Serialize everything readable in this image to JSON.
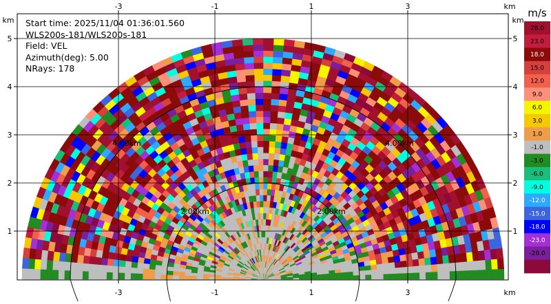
{
  "chart_data": {
    "type": "heatmap",
    "subtype": "radar-ppi-sector",
    "title": "",
    "info_lines": [
      "Start time: 2025/11/04 01:36:01.560",
      "WLS200s-181/WLS200s-181",
      "Field: VEL",
      "Azimuth(deg): 5.00",
      "NRays: 178"
    ],
    "xlabel": "km",
    "ylabel": "km",
    "xlim": [
      -5.1,
      5.1
    ],
    "ylim": [
      0,
      5.3
    ],
    "x_ticks": [
      -3,
      -1,
      1,
      3
    ],
    "x_tick_labels": [
      "-3",
      "-1",
      "1",
      "3"
    ],
    "y_ticks": [
      1,
      2,
      3,
      4,
      5
    ],
    "y_tick_labels": [
      "1",
      "2",
      "3",
      "4",
      "5"
    ],
    "grid": true,
    "range_rings_km": [
      2,
      4
    ],
    "range_ring_labels": [
      "2.00km",
      "4.00km",
      "2.00km",
      "4.00km"
    ],
    "max_range_km": 5.0,
    "sector_deg": [
      0,
      180
    ],
    "colorbar": {
      "unit": "m/s",
      "labels": [
        "28.0",
        "23.0",
        "18.0",
        "15.0",
        "12.0",
        "9.0",
        "6.0",
        "3.0",
        "1.0",
        "-1.0",
        "-3.0",
        "-6.0",
        "-9.0",
        "-12.0",
        "-15.0",
        "-18.0",
        "-23.0",
        "-28.0"
      ],
      "colors": [
        "#a2102f",
        "#c21d3c",
        "#8b0a0a",
        "#d5403c",
        "#f25f4a",
        "#ff8f78",
        "#f5f500",
        "#f5c800",
        "#ef9d4a",
        "#bebebe",
        "#228b22",
        "#17bf7a",
        "#00ffe0",
        "#2fa8ff",
        "#3e65e0",
        "#0000ff",
        "#a230d5",
        "#7b1f9b",
        "#8b0a3b"
      ]
    }
  }
}
